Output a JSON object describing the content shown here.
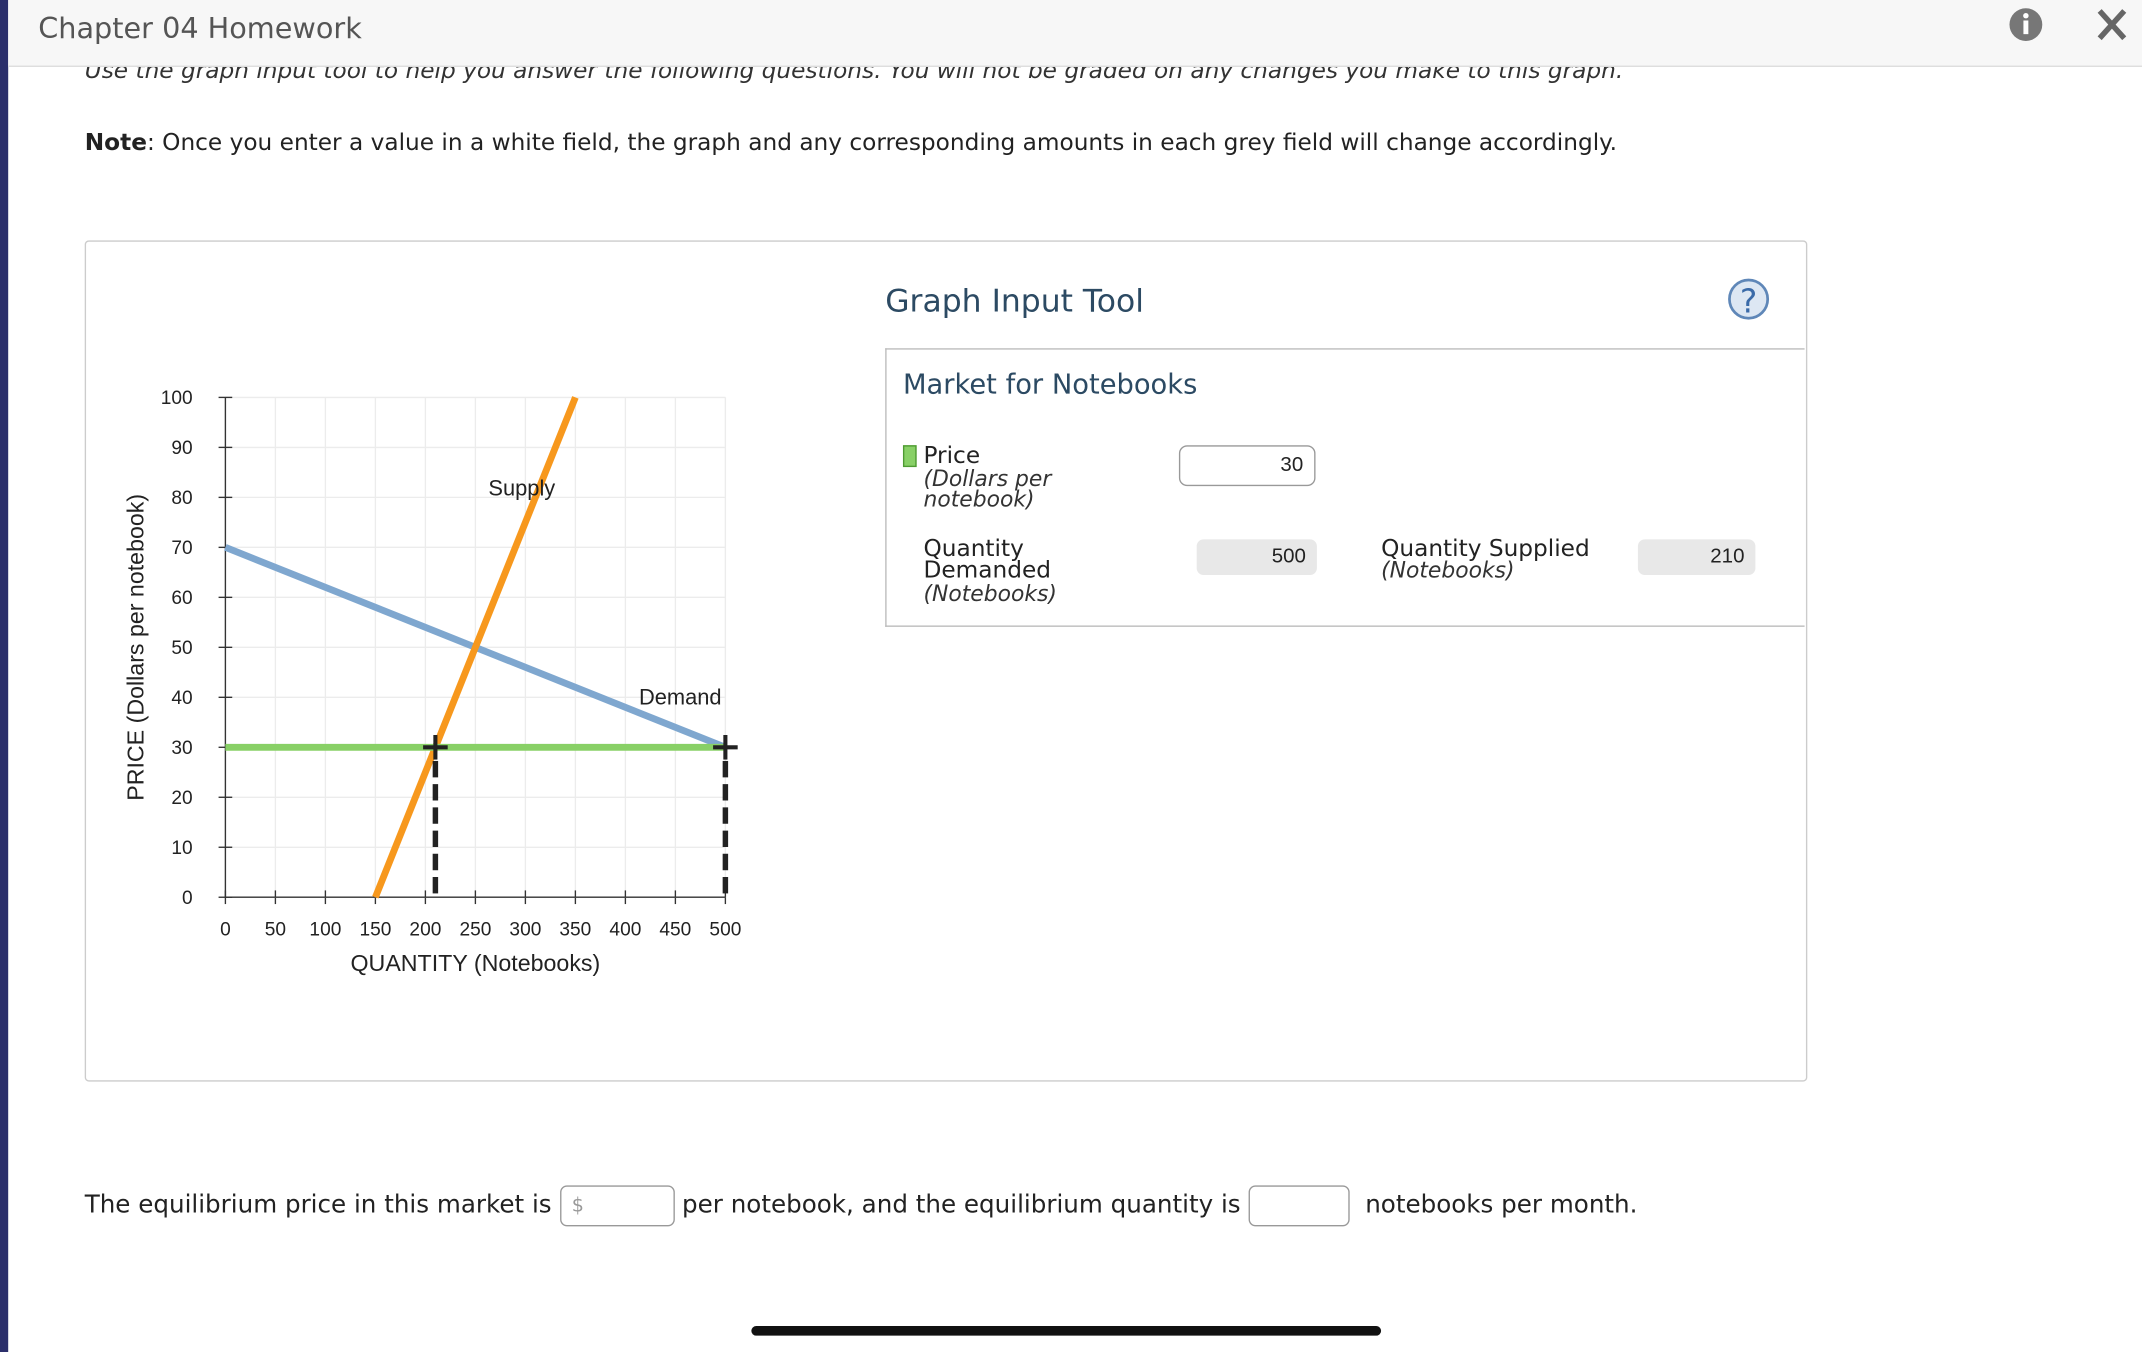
{
  "header": {
    "title": "Chapter 04 Homework"
  },
  "instructions": "Use the graph input tool to help you answer the following questions. You will not be graded on any changes you make to this graph.",
  "note": {
    "label": "Note",
    "text": ": Once you enter a value in a white field, the graph and any corresponding amounts in each grey field will change accordingly."
  },
  "chart_data": {
    "type": "line",
    "xlabel": "QUANTITY (Notebooks)",
    "ylabel": "PRICE (Dollars per notebook)",
    "xlim": [
      0,
      500
    ],
    "ylim": [
      0,
      100
    ],
    "xticks": [
      0,
      50,
      100,
      150,
      200,
      250,
      300,
      350,
      400,
      450,
      500
    ],
    "yticks": [
      0,
      10,
      20,
      30,
      40,
      50,
      60,
      70,
      80,
      90,
      100
    ],
    "grid": true,
    "series": [
      {
        "name": "Demand",
        "color": "#7fa7cf",
        "x": [
          0,
          500
        ],
        "values": [
          70,
          30
        ]
      },
      {
        "name": "Supply",
        "color": "#f7981d",
        "x": [
          150,
          350
        ],
        "values": [
          0,
          100
        ]
      },
      {
        "color": "#88d066",
        "x": [
          0,
          500
        ],
        "values": [
          30,
          30
        ]
      }
    ]
  },
  "graph_tool": {
    "title": "Graph Input Tool",
    "help": "?",
    "market": "Market for Notebooks",
    "price": {
      "label": "Price",
      "unit": "(Dollars per notebook)",
      "value": 30
    },
    "quantity_demanded": {
      "label": "Quantity Demanded",
      "unit": "(Notebooks)",
      "value": 500
    },
    "quantity_supplied": {
      "label": "Quantity Supplied",
      "unit": "(Notebooks)",
      "value": 210
    }
  },
  "question": {
    "part1": "The equilibrium price in this market is",
    "currency": "$",
    "part2": "per notebook, and the equilibrium quantity is",
    "part3": "notebooks per month."
  }
}
